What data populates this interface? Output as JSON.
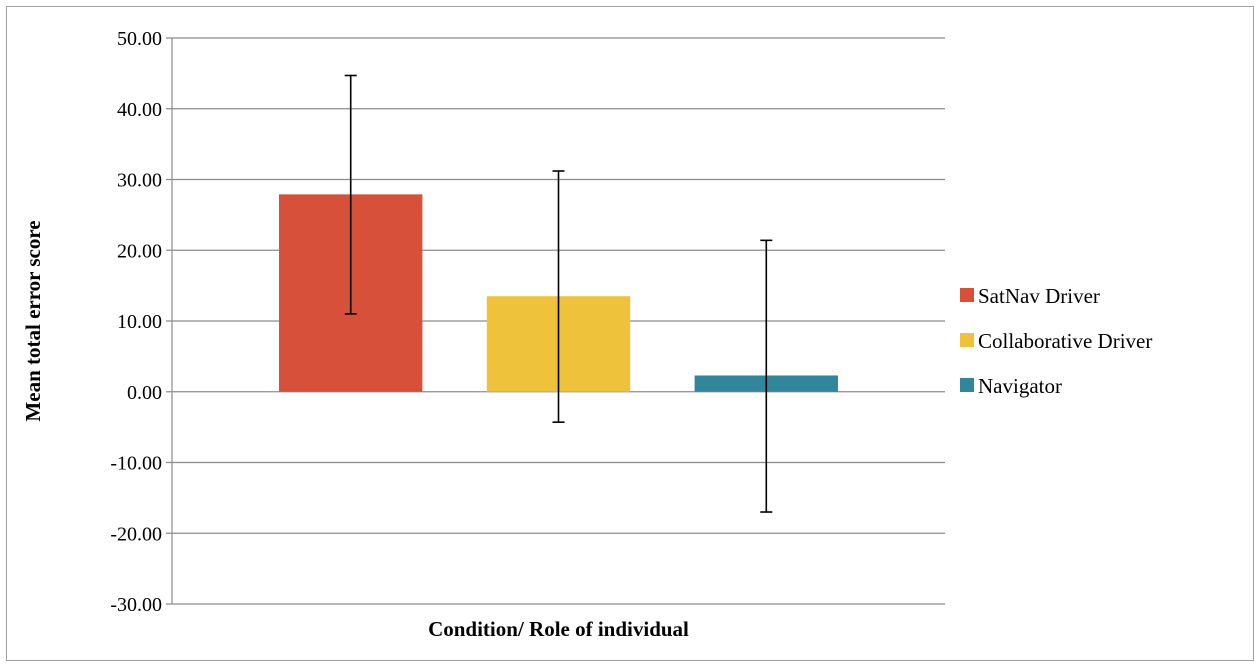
{
  "chart_data": {
    "type": "bar",
    "categories": [
      "SatNav Driver",
      "Collaborative Driver",
      "Navigator"
    ],
    "series": [
      {
        "name": "SatNav Driver",
        "value": 27.9,
        "error_low": 11.0,
        "error_high": 44.7,
        "color": "#d6503a"
      },
      {
        "name": "Collaborative Driver",
        "value": 13.5,
        "error_low": -4.3,
        "error_high": 31.2,
        "color": "#eec23b"
      },
      {
        "name": "Navigator",
        "value": 2.3,
        "error_low": -17.0,
        "error_high": 21.4,
        "color": "#31869b"
      }
    ],
    "ylabel": "Mean total error score",
    "xlabel": "Condition/ Role of individual",
    "ylim": [
      -30,
      50
    ],
    "yticks": [
      50,
      40,
      30,
      20,
      10,
      0,
      -10,
      -20,
      -30
    ],
    "ytick_labels": [
      "50.00",
      "40.00",
      "30.00",
      "20.00",
      "10.00",
      "0.00",
      "-10.00",
      "-20.00",
      "-30.00"
    ],
    "grid": true,
    "legend_position": "right"
  }
}
